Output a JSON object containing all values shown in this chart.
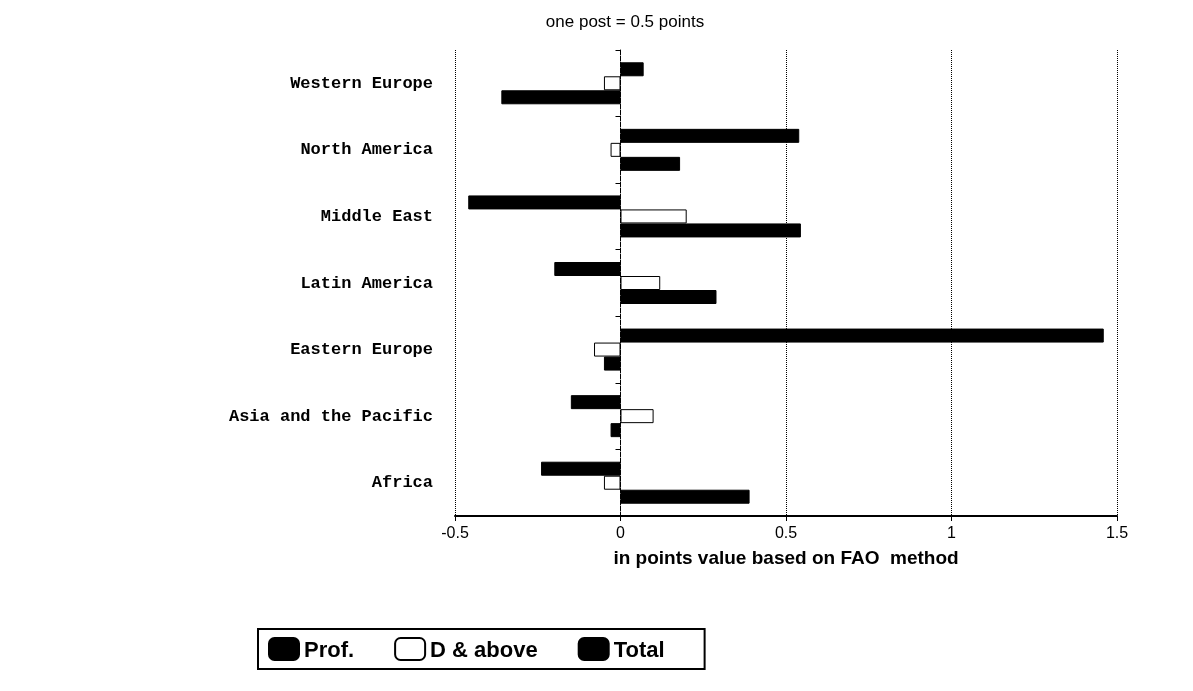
{
  "chart_data": {
    "type": "bar",
    "orientation": "horizontal",
    "title": "one post = 0.5 points",
    "xlabel": "in points value based on FAO  method",
    "categories": [
      "Western Europe",
      "North America",
      "Middle East",
      "Latin America",
      "Eastern Europe",
      "Asia and the Pacific",
      "Africa"
    ],
    "series": [
      {
        "name": "Prof.",
        "color": "#000000",
        "values": [
          0.07,
          0.54,
          -0.46,
          -0.2,
          1.46,
          -0.15,
          -0.24
        ]
      },
      {
        "name": "D & above",
        "color": "#ffffff",
        "values": [
          -0.05,
          -0.03,
          0.2,
          0.12,
          -0.08,
          0.1,
          -0.05
        ]
      },
      {
        "name": "Total",
        "color": "#000000",
        "values": [
          -0.36,
          0.18,
          0.545,
          0.29,
          -0.05,
          -0.03,
          0.39
        ]
      }
    ],
    "xlim": [
      -0.5,
      1.5
    ],
    "xticks": [
      -0.5,
      0,
      0.5,
      1,
      1.5
    ],
    "grid": "x",
    "legend": "bottom"
  }
}
